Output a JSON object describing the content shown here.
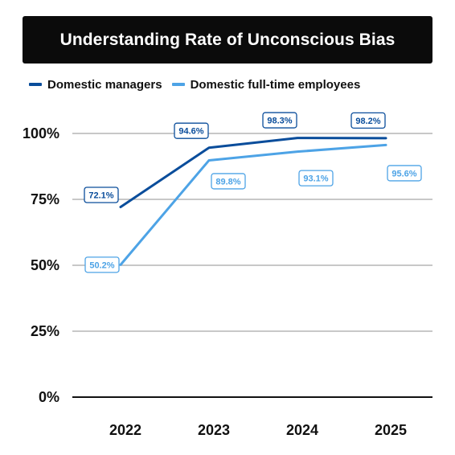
{
  "title": "Understanding Rate of Unconscious Bias",
  "colors": {
    "title_bg": "#0b0b0b",
    "managers": "#0a4d9b",
    "employees": "#4da3e6",
    "grid": "#a6a6a6",
    "axis": "#111111"
  },
  "legend": {
    "items": [
      {
        "label": "Domestic managers",
        "color": "#0a4d9b"
      },
      {
        "label": "Domestic full-time employees",
        "color": "#4da3e6"
      }
    ]
  },
  "chart_data": {
    "type": "line",
    "title": "Understanding Rate of Unconscious Bias",
    "categories": [
      "2022",
      "2023",
      "2024",
      "2025"
    ],
    "y_ticks": [
      "0%",
      "25%",
      "50%",
      "75%",
      "100%"
    ],
    "ylim": [
      0,
      100
    ],
    "grid": true,
    "legend_position": "top-left",
    "series": [
      {
        "name": "Domestic managers",
        "color": "#0a4d9b",
        "values": [
          72.1,
          94.6,
          98.3,
          98.2
        ],
        "labels": [
          "72.1%",
          "94.6%",
          "98.3%",
          "98.2%"
        ]
      },
      {
        "name": "Domestic full-time employees",
        "color": "#4da3e6",
        "values": [
          50.2,
          89.8,
          93.1,
          95.6
        ],
        "labels": [
          "50.2%",
          "89.8%",
          "93.1%",
          "95.6%"
        ]
      }
    ]
  }
}
